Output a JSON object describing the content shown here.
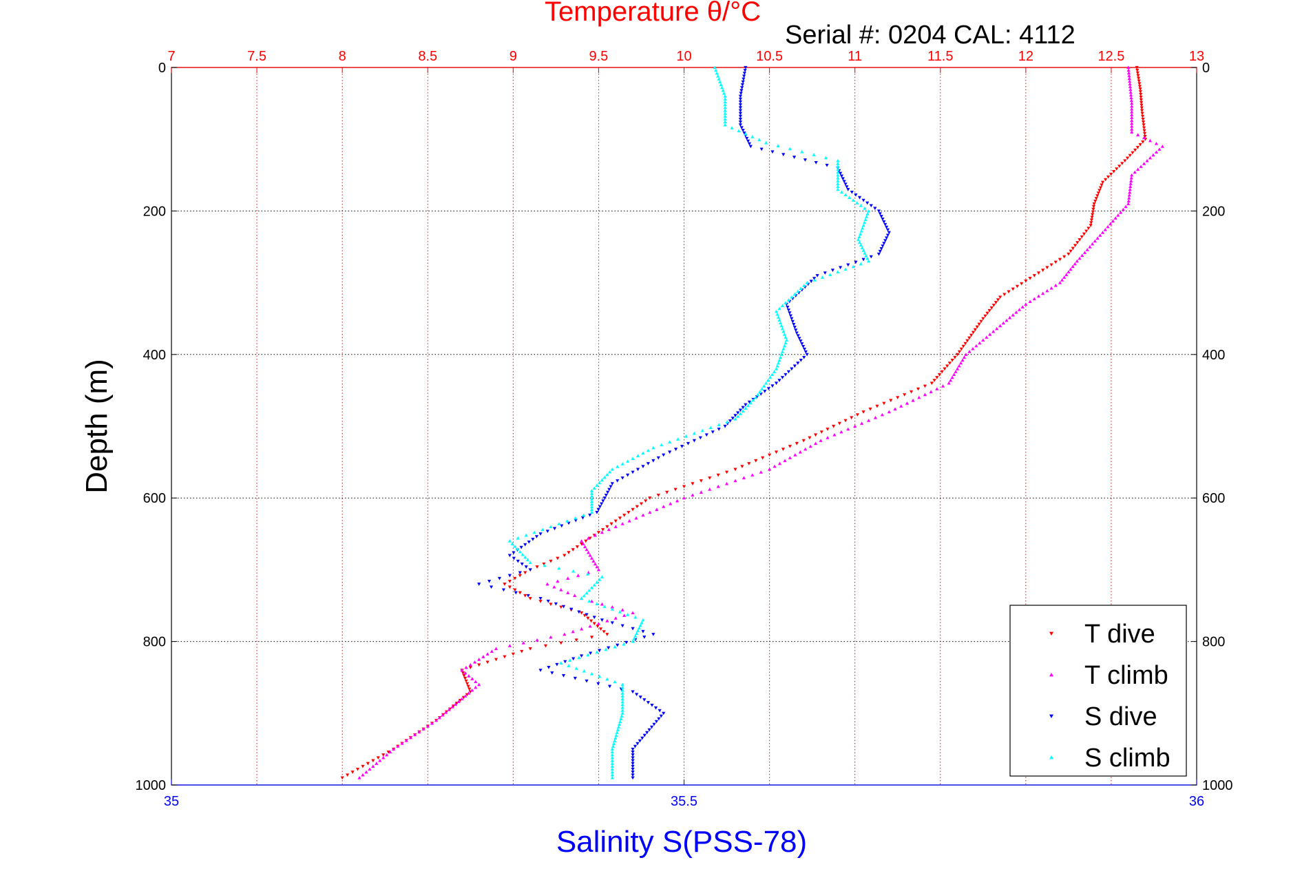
{
  "header": {
    "top_title": "Temperature θ/°C",
    "serial": "Serial #: 0204  CAL: 4112"
  },
  "chart_data": {
    "type": "scatter",
    "ylabel": "Depth (m)",
    "xlabel_bottom": "Salinity S(PSS-78)",
    "xlabel_top": "Temperature θ/°C",
    "yticks": [
      "0",
      "200",
      "400",
      "600",
      "800",
      "1000"
    ],
    "ylim": [
      0,
      1000
    ],
    "top_axis": {
      "range": [
        7,
        13
      ],
      "ticks": [
        "7",
        "7.5",
        "8",
        "8.5",
        "9",
        "9.5",
        "10",
        "10.5",
        "11",
        "11.5",
        "12",
        "12.5",
        "13"
      ],
      "grid": true,
      "color": "#ff0000"
    },
    "bottom_axis": {
      "range": [
        35,
        36
      ],
      "ticks": [
        "35",
        "35.5",
        "36"
      ],
      "color": "#0000ff"
    },
    "grid": true,
    "legend_position": "bottom-right",
    "series": [
      {
        "name": "T dive",
        "axis": "temperature",
        "color": "#ff0000",
        "marker": "triangle-down",
        "points": [
          [
            12.65,
            0
          ],
          [
            12.67,
            30
          ],
          [
            12.68,
            60
          ],
          [
            12.7,
            100
          ],
          [
            12.58,
            130
          ],
          [
            12.45,
            160
          ],
          [
            12.4,
            190
          ],
          [
            12.38,
            220
          ],
          [
            12.25,
            260
          ],
          [
            12.05,
            290
          ],
          [
            11.85,
            320
          ],
          [
            11.75,
            350
          ],
          [
            11.6,
            400
          ],
          [
            11.45,
            440
          ],
          [
            11.05,
            480
          ],
          [
            10.7,
            520
          ],
          [
            10.3,
            560
          ],
          [
            9.8,
            600
          ],
          [
            9.55,
            640
          ],
          [
            9.3,
            680
          ],
          [
            9.1,
            700
          ],
          [
            8.95,
            720
          ],
          [
            9.1,
            740
          ],
          [
            9.4,
            760
          ],
          [
            9.55,
            790
          ],
          [
            9.1,
            810
          ],
          [
            8.7,
            840
          ],
          [
            8.75,
            870
          ],
          [
            8.55,
            910
          ],
          [
            8.3,
            950
          ],
          [
            8.0,
            990
          ]
        ]
      },
      {
        "name": "T climb",
        "axis": "temperature",
        "color": "#ff00ff",
        "marker": "triangle-up",
        "points": [
          [
            12.6,
            0
          ],
          [
            12.62,
            50
          ],
          [
            12.62,
            90
          ],
          [
            12.8,
            110
          ],
          [
            12.62,
            150
          ],
          [
            12.6,
            190
          ],
          [
            12.45,
            230
          ],
          [
            12.3,
            270
          ],
          [
            12.2,
            300
          ],
          [
            12.0,
            330
          ],
          [
            11.85,
            360
          ],
          [
            11.65,
            400
          ],
          [
            11.55,
            440
          ],
          [
            11.2,
            480
          ],
          [
            10.8,
            520
          ],
          [
            10.5,
            560
          ],
          [
            10.0,
            600
          ],
          [
            9.6,
            640
          ],
          [
            9.4,
            660
          ],
          [
            9.5,
            700
          ],
          [
            9.2,
            720
          ],
          [
            9.4,
            740
          ],
          [
            9.7,
            760
          ],
          [
            9.3,
            790
          ],
          [
            8.9,
            810
          ],
          [
            8.7,
            840
          ],
          [
            8.8,
            860
          ],
          [
            8.7,
            880
          ],
          [
            8.55,
            910
          ],
          [
            8.3,
            950
          ],
          [
            8.1,
            990
          ]
        ]
      },
      {
        "name": "S dive",
        "axis": "salinity",
        "color": "#0000ff",
        "marker": "triangle-down",
        "points": [
          [
            35.56,
            0
          ],
          [
            35.555,
            40
          ],
          [
            35.555,
            80
          ],
          [
            35.565,
            110
          ],
          [
            35.65,
            140
          ],
          [
            35.66,
            170
          ],
          [
            35.69,
            200
          ],
          [
            35.7,
            230
          ],
          [
            35.69,
            260
          ],
          [
            35.63,
            290
          ],
          [
            35.6,
            330
          ],
          [
            35.61,
            370
          ],
          [
            35.62,
            400
          ],
          [
            35.59,
            440
          ],
          [
            35.56,
            470
          ],
          [
            35.54,
            500
          ],
          [
            35.48,
            540
          ],
          [
            35.43,
            580
          ],
          [
            35.415,
            620
          ],
          [
            35.36,
            650
          ],
          [
            35.33,
            680
          ],
          [
            35.35,
            700
          ],
          [
            35.3,
            720
          ],
          [
            35.36,
            740
          ],
          [
            35.42,
            770
          ],
          [
            35.47,
            790
          ],
          [
            35.4,
            820
          ],
          [
            35.36,
            840
          ],
          [
            35.45,
            870
          ],
          [
            35.48,
            900
          ],
          [
            35.45,
            950
          ],
          [
            35.45,
            990
          ]
        ]
      },
      {
        "name": "S climb",
        "axis": "salinity",
        "color": "#00ffff",
        "marker": "triangle-up",
        "points": [
          [
            35.53,
            0
          ],
          [
            35.54,
            40
          ],
          [
            35.54,
            80
          ],
          [
            35.58,
            105
          ],
          [
            35.65,
            130
          ],
          [
            35.65,
            170
          ],
          [
            35.68,
            200
          ],
          [
            35.67,
            240
          ],
          [
            35.68,
            270
          ],
          [
            35.62,
            300
          ],
          [
            35.59,
            340
          ],
          [
            35.6,
            380
          ],
          [
            35.59,
            420
          ],
          [
            35.57,
            460
          ],
          [
            35.55,
            490
          ],
          [
            35.47,
            530
          ],
          [
            35.43,
            560
          ],
          [
            35.41,
            590
          ],
          [
            35.41,
            620
          ],
          [
            35.33,
            660
          ],
          [
            35.35,
            690
          ],
          [
            35.42,
            710
          ],
          [
            35.4,
            740
          ],
          [
            35.46,
            770
          ],
          [
            35.45,
            800
          ],
          [
            35.38,
            830
          ],
          [
            35.44,
            860
          ],
          [
            35.44,
            900
          ],
          [
            35.43,
            950
          ],
          [
            35.43,
            990
          ]
        ]
      }
    ]
  }
}
